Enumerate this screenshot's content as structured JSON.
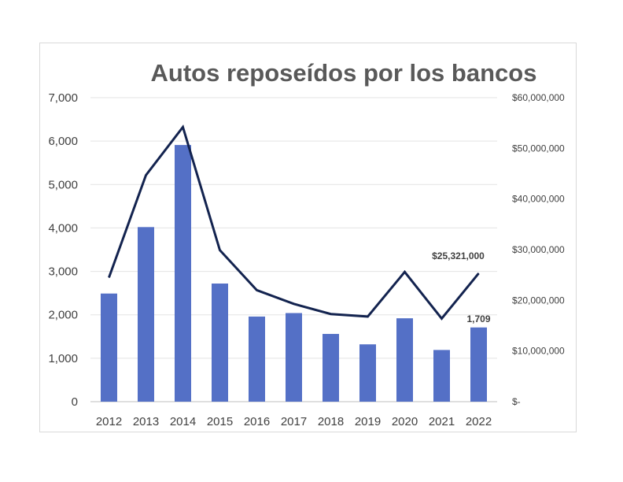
{
  "chart_data": {
    "type": "bar",
    "title": "Autos reposeídos por los bancos",
    "xlabel": "",
    "ylabel": "",
    "categories": [
      "2012",
      "2013",
      "2014",
      "2015",
      "2016",
      "2017",
      "2018",
      "2019",
      "2020",
      "2021",
      "2022"
    ],
    "series": [
      {
        "type": "bar",
        "axis": "left",
        "values": [
          2490,
          4020,
          5910,
          2720,
          1960,
          2040,
          1560,
          1320,
          1920,
          1190,
          1709
        ],
        "color": "#5470c6"
      },
      {
        "type": "line",
        "axis": "right",
        "values": [
          24500000,
          44700000,
          54200000,
          29900000,
          22000000,
          19300000,
          17300000,
          16800000,
          25600000,
          16400000,
          25321000
        ],
        "color": "#13234f"
      }
    ],
    "y_left": {
      "ylim": [
        0,
        7000
      ],
      "ticks": [
        0,
        1000,
        2000,
        3000,
        4000,
        5000,
        6000,
        7000
      ],
      "tick_labels": [
        "0",
        "1,000",
        "2,000",
        "3,000",
        "4,000",
        "5,000",
        "6,000",
        "7,000"
      ]
    },
    "y_right": {
      "ylim": [
        0,
        60000000
      ],
      "ticks": [
        0,
        10000000,
        20000000,
        30000000,
        40000000,
        50000000,
        60000000
      ],
      "tick_labels": [
        "$-",
        "$10,000,000",
        "$20,000,000",
        "$30,000,000",
        "$40,000,000",
        "$50,000,000",
        "$60,000,000"
      ]
    },
    "data_labels": {
      "last_bar": "1,709",
      "last_line_point": "$25,321,000"
    },
    "grid": true,
    "legend": "none"
  }
}
